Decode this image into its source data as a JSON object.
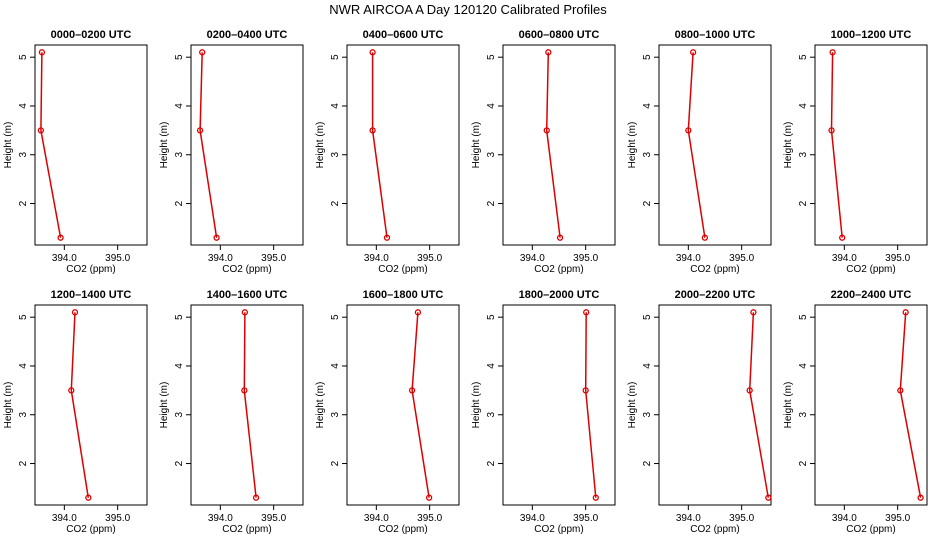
{
  "title": "NWR AIRCOA A  Day 120120  Calibrated Profiles",
  "chart_data": [
    {
      "type": "line",
      "title": "0000–0200 UTC",
      "xlabel": "CO2 (ppm)",
      "ylabel": "Height (m)",
      "x_ticks": [
        "394.0",
        "395.0"
      ],
      "y_ticks": [
        "2",
        "3",
        "4",
        "5"
      ],
      "xlim": [
        393.45,
        395.55
      ],
      "ylim": [
        1.15,
        5.25
      ],
      "series": [
        {
          "x": [
            393.93,
            393.56,
            393.58
          ],
          "y": [
            1.3,
            3.5,
            5.1
          ]
        }
      ]
    },
    {
      "type": "line",
      "title": "0200–0400 UTC",
      "xlabel": "CO2 (ppm)",
      "ylabel": "Height (m)",
      "x_ticks": [
        "394.0",
        "395.0"
      ],
      "y_ticks": [
        "2",
        "3",
        "4",
        "5"
      ],
      "xlim": [
        393.45,
        395.55
      ],
      "ylim": [
        1.15,
        5.25
      ],
      "series": [
        {
          "x": [
            393.93,
            393.62,
            393.66
          ],
          "y": [
            1.3,
            3.5,
            5.1
          ]
        }
      ]
    },
    {
      "type": "line",
      "title": "0400–0600 UTC",
      "xlabel": "CO2 (ppm)",
      "ylabel": "Height (m)",
      "x_ticks": [
        "394.0",
        "395.0"
      ],
      "y_ticks": [
        "2",
        "3",
        "4",
        "5"
      ],
      "xlim": [
        393.45,
        395.55
      ],
      "ylim": [
        1.15,
        5.25
      ],
      "series": [
        {
          "x": [
            394.2,
            393.93,
            393.93
          ],
          "y": [
            1.3,
            3.5,
            5.1
          ]
        }
      ]
    },
    {
      "type": "line",
      "title": "0600–0800 UTC",
      "xlabel": "CO2 (ppm)",
      "ylabel": "Height (m)",
      "x_ticks": [
        "394.0",
        "395.0"
      ],
      "y_ticks": [
        "2",
        "3",
        "4",
        "5"
      ],
      "xlim": [
        393.45,
        395.55
      ],
      "ylim": [
        1.15,
        5.25
      ],
      "series": [
        {
          "x": [
            394.52,
            394.27,
            394.3
          ],
          "y": [
            1.3,
            3.5,
            5.1
          ]
        }
      ]
    },
    {
      "type": "line",
      "title": "0800–1000 UTC",
      "xlabel": "CO2 (ppm)",
      "ylabel": "Height (m)",
      "x_ticks": [
        "394.0",
        "395.0"
      ],
      "y_ticks": [
        "2",
        "3",
        "4",
        "5"
      ],
      "xlim": [
        393.45,
        395.55
      ],
      "ylim": [
        1.15,
        5.25
      ],
      "series": [
        {
          "x": [
            394.31,
            394.0,
            394.09
          ],
          "y": [
            1.3,
            3.5,
            5.1
          ]
        }
      ]
    },
    {
      "type": "line",
      "title": "1000–1200 UTC",
      "xlabel": "CO2 (ppm)",
      "ylabel": "Height (m)",
      "x_ticks": [
        "394.0",
        "395.0"
      ],
      "y_ticks": [
        "2",
        "3",
        "4",
        "5"
      ],
      "xlim": [
        393.45,
        395.55
      ],
      "ylim": [
        1.15,
        5.25
      ],
      "series": [
        {
          "x": [
            393.96,
            393.76,
            393.78
          ],
          "y": [
            1.3,
            3.5,
            5.1
          ]
        }
      ]
    },
    {
      "type": "line",
      "title": "1200–1400 UTC",
      "xlabel": "CO2 (ppm)",
      "ylabel": "Height (m)",
      "x_ticks": [
        "394.0",
        "395.0"
      ],
      "y_ticks": [
        "2",
        "3",
        "4",
        "5"
      ],
      "xlim": [
        393.45,
        395.55
      ],
      "ylim": [
        1.15,
        5.25
      ],
      "series": [
        {
          "x": [
            394.45,
            394.13,
            394.2
          ],
          "y": [
            1.3,
            3.5,
            5.1
          ]
        }
      ]
    },
    {
      "type": "line",
      "title": "1400–1600 UTC",
      "xlabel": "CO2 (ppm)",
      "ylabel": "Height (m)",
      "x_ticks": [
        "394.0",
        "395.0"
      ],
      "y_ticks": [
        "2",
        "3",
        "4",
        "5"
      ],
      "xlim": [
        393.45,
        395.55
      ],
      "ylim": [
        1.15,
        5.25
      ],
      "series": [
        {
          "x": [
            394.67,
            394.45,
            394.46
          ],
          "y": [
            1.3,
            3.5,
            5.1
          ]
        }
      ]
    },
    {
      "type": "line",
      "title": "1600–1800 UTC",
      "xlabel": "CO2 (ppm)",
      "ylabel": "Height (m)",
      "x_ticks": [
        "394.0",
        "395.0"
      ],
      "y_ticks": [
        "2",
        "3",
        "4",
        "5"
      ],
      "xlim": [
        393.45,
        395.55
      ],
      "ylim": [
        1.15,
        5.25
      ],
      "series": [
        {
          "x": [
            394.99,
            394.67,
            394.78
          ],
          "y": [
            1.3,
            3.5,
            5.1
          ]
        }
      ]
    },
    {
      "type": "line",
      "title": "1800–2000 UTC",
      "xlabel": "CO2 (ppm)",
      "ylabel": "Height (m)",
      "x_ticks": [
        "394.0",
        "395.0"
      ],
      "y_ticks": [
        "2",
        "3",
        "4",
        "5"
      ],
      "xlim": [
        393.45,
        395.55
      ],
      "ylim": [
        1.15,
        5.25
      ],
      "series": [
        {
          "x": [
            395.19,
            395.0,
            395.01
          ],
          "y": [
            1.3,
            3.5,
            5.1
          ]
        }
      ]
    },
    {
      "type": "line",
      "title": "2000–2200 UTC",
      "xlabel": "CO2 (ppm)",
      "ylabel": "Height (m)",
      "x_ticks": [
        "394.0",
        "395.0"
      ],
      "y_ticks": [
        "2",
        "3",
        "4",
        "5"
      ],
      "xlim": [
        393.45,
        395.55
      ],
      "ylim": [
        1.15,
        5.25
      ],
      "series": [
        {
          "x": [
            395.5,
            395.15,
            395.22
          ],
          "y": [
            1.3,
            3.5,
            5.1
          ]
        }
      ]
    },
    {
      "type": "line",
      "title": "2200–2400 UTC",
      "xlabel": "CO2 (ppm)",
      "ylabel": "Height (m)",
      "x_ticks": [
        "394.0",
        "395.0"
      ],
      "y_ticks": [
        "2",
        "3",
        "4",
        "5"
      ],
      "xlim": [
        393.45,
        395.55
      ],
      "ylim": [
        1.15,
        5.25
      ],
      "series": [
        {
          "x": [
            395.43,
            395.05,
            395.15
          ],
          "y": [
            1.3,
            3.5,
            5.1
          ]
        }
      ]
    }
  ],
  "colors": {
    "series": "#dd0000",
    "axis": "#000000"
  }
}
